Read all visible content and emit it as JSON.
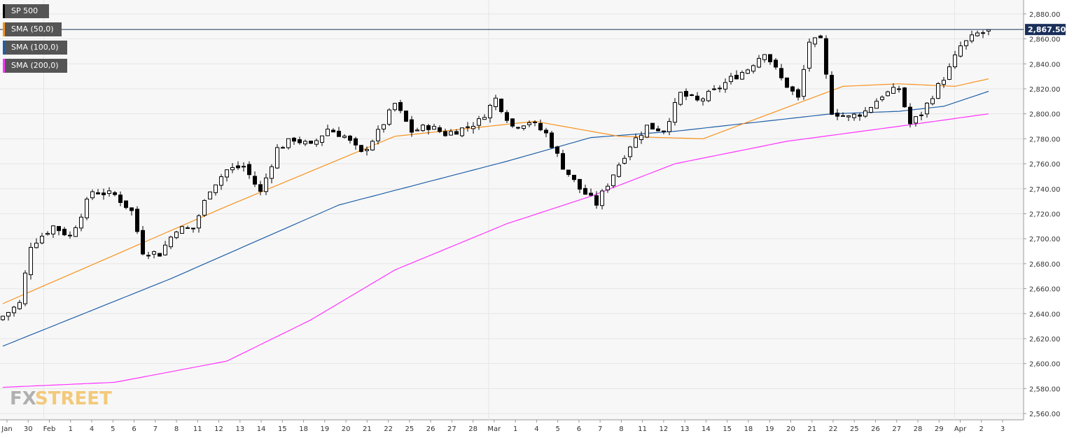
{
  "legend": [
    {
      "label": "SP 500",
      "color": "#000000"
    },
    {
      "label": "SMA (50,0)",
      "color": "#f7931e"
    },
    {
      "label": "SMA (100,0)",
      "color": "#1f5fa8"
    },
    {
      "label": "SMA (200,0)",
      "color": "#ff33ff"
    }
  ],
  "price_tag": "2,867.50",
  "watermark": {
    "part1": "FX",
    "part2": "STREET"
  },
  "chart_data": {
    "type": "candlestick",
    "instrument": "SP 500",
    "last_price": 2867.5,
    "ylim": [
      2555,
      2890
    ],
    "y_ticks": [
      2560,
      2580,
      2600,
      2620,
      2640,
      2660,
      2680,
      2700,
      2720,
      2740,
      2760,
      2780,
      2800,
      2820,
      2840,
      2860,
      2880
    ],
    "y_tick_labels": [
      "2,560.00",
      "2,580.00",
      "2,600.00",
      "2,620.00",
      "2,640.00",
      "2,660.00",
      "2,680.00",
      "2,700.00",
      "2,720.00",
      "2,740.00",
      "2,760.00",
      "2,780.00",
      "2,800.00",
      "2,820.00",
      "2,840.00",
      "2,860.00",
      "2,880.00"
    ],
    "x_labels": [
      "Jan",
      "30",
      "Feb",
      "1",
      "4",
      "5",
      "6",
      "7",
      "8",
      "11",
      "12",
      "13",
      "14",
      "15",
      "18",
      "19",
      "20",
      "21",
      "22",
      "25",
      "26",
      "27",
      "28",
      "Mar",
      "1",
      "4",
      "5",
      "6",
      "7",
      "8",
      "11",
      "12",
      "13",
      "14",
      "15",
      "18",
      "19",
      "20",
      "21",
      "22",
      "25",
      "26",
      "27",
      "28",
      "29",
      "Apr",
      "2",
      "3"
    ],
    "month_starts": [
      "Feb",
      "Mar",
      "Apr"
    ],
    "close_anchors": [
      [
        0,
        2638
      ],
      [
        3,
        2648
      ],
      [
        5,
        2695
      ],
      [
        9,
        2710
      ],
      [
        12,
        2702
      ],
      [
        16,
        2738
      ],
      [
        20,
        2735
      ],
      [
        23,
        2722
      ],
      [
        25,
        2690
      ],
      [
        28,
        2688
      ],
      [
        31,
        2708
      ],
      [
        34,
        2708
      ],
      [
        37,
        2740
      ],
      [
        40,
        2755
      ],
      [
        43,
        2758
      ],
      [
        46,
        2737
      ],
      [
        49,
        2772
      ],
      [
        52,
        2780
      ],
      [
        55,
        2774
      ],
      [
        58,
        2788
      ],
      [
        61,
        2782
      ],
      [
        64,
        2768
      ],
      [
        67,
        2785
      ],
      [
        70,
        2808
      ],
      [
        73,
        2786
      ],
      [
        76,
        2790
      ],
      [
        79,
        2784
      ],
      [
        82,
        2788
      ],
      [
        85,
        2794
      ],
      [
        88,
        2812
      ],
      [
        91,
        2790
      ],
      [
        94,
        2794
      ],
      [
        97,
        2784
      ],
      [
        100,
        2758
      ],
      [
        103,
        2740
      ],
      [
        106,
        2728
      ],
      [
        109,
        2752
      ],
      [
        112,
        2775
      ],
      [
        115,
        2790
      ],
      [
        118,
        2787
      ],
      [
        121,
        2816
      ],
      [
        124,
        2810
      ],
      [
        127,
        2818
      ],
      [
        130,
        2828
      ],
      [
        133,
        2836
      ],
      [
        136,
        2850
      ],
      [
        139,
        2828
      ],
      [
        142,
        2812
      ],
      [
        144,
        2858
      ],
      [
        146,
        2858
      ],
      [
        148,
        2802
      ],
      [
        151,
        2797
      ],
      [
        154,
        2802
      ],
      [
        157,
        2815
      ],
      [
        160,
        2820
      ],
      [
        162,
        2792
      ],
      [
        164,
        2800
      ],
      [
        166,
        2815
      ],
      [
        169,
        2836
      ],
      [
        171,
        2854
      ],
      [
        174,
        2864
      ],
      [
        176,
        2866
      ]
    ],
    "sma_50": [
      [
        0,
        2648
      ],
      [
        40,
        2726
      ],
      [
        70,
        2782
      ],
      [
        95,
        2794
      ],
      [
        110,
        2782
      ],
      [
        125,
        2780
      ],
      [
        150,
        2822
      ],
      [
        160,
        2824
      ],
      [
        170,
        2822
      ],
      [
        176,
        2828
      ]
    ],
    "sma_100": [
      [
        0,
        2614
      ],
      [
        30,
        2668
      ],
      [
        60,
        2727
      ],
      [
        90,
        2762
      ],
      [
        105,
        2781
      ],
      [
        120,
        2786
      ],
      [
        148,
        2800
      ],
      [
        160,
        2802
      ],
      [
        168,
        2806
      ],
      [
        176,
        2818
      ]
    ],
    "sma_200": [
      [
        0,
        2581
      ],
      [
        20,
        2585
      ],
      [
        40,
        2602
      ],
      [
        55,
        2635
      ],
      [
        70,
        2675
      ],
      [
        90,
        2712
      ],
      [
        105,
        2734
      ],
      [
        120,
        2760
      ],
      [
        140,
        2778
      ],
      [
        160,
        2790
      ],
      [
        176,
        2800
      ]
    ]
  }
}
